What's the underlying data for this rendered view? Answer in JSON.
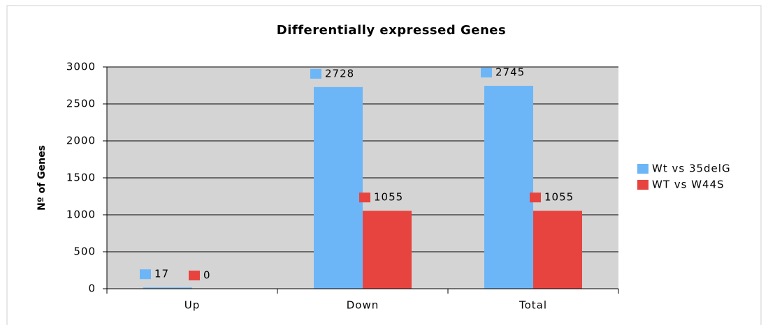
{
  "chart_data": {
    "type": "bar",
    "title": "Differentially expressed Genes",
    "y_label": "Nº of Genes",
    "categories": [
      "Up",
      "Down",
      "Total"
    ],
    "series": [
      {
        "name": "Wt vs 35delG",
        "color": "#6cb6f8",
        "values": [
          17,
          2728,
          2745
        ]
      },
      {
        "name": "WT vs W44S",
        "color": "#e8443f",
        "values": [
          0,
          1055,
          1055
        ]
      }
    ],
    "ylim": [
      0,
      3000
    ],
    "yticks": [
      0,
      500,
      1000,
      1500,
      2000,
      2500,
      3000
    ],
    "grid": true,
    "legend": "right"
  }
}
